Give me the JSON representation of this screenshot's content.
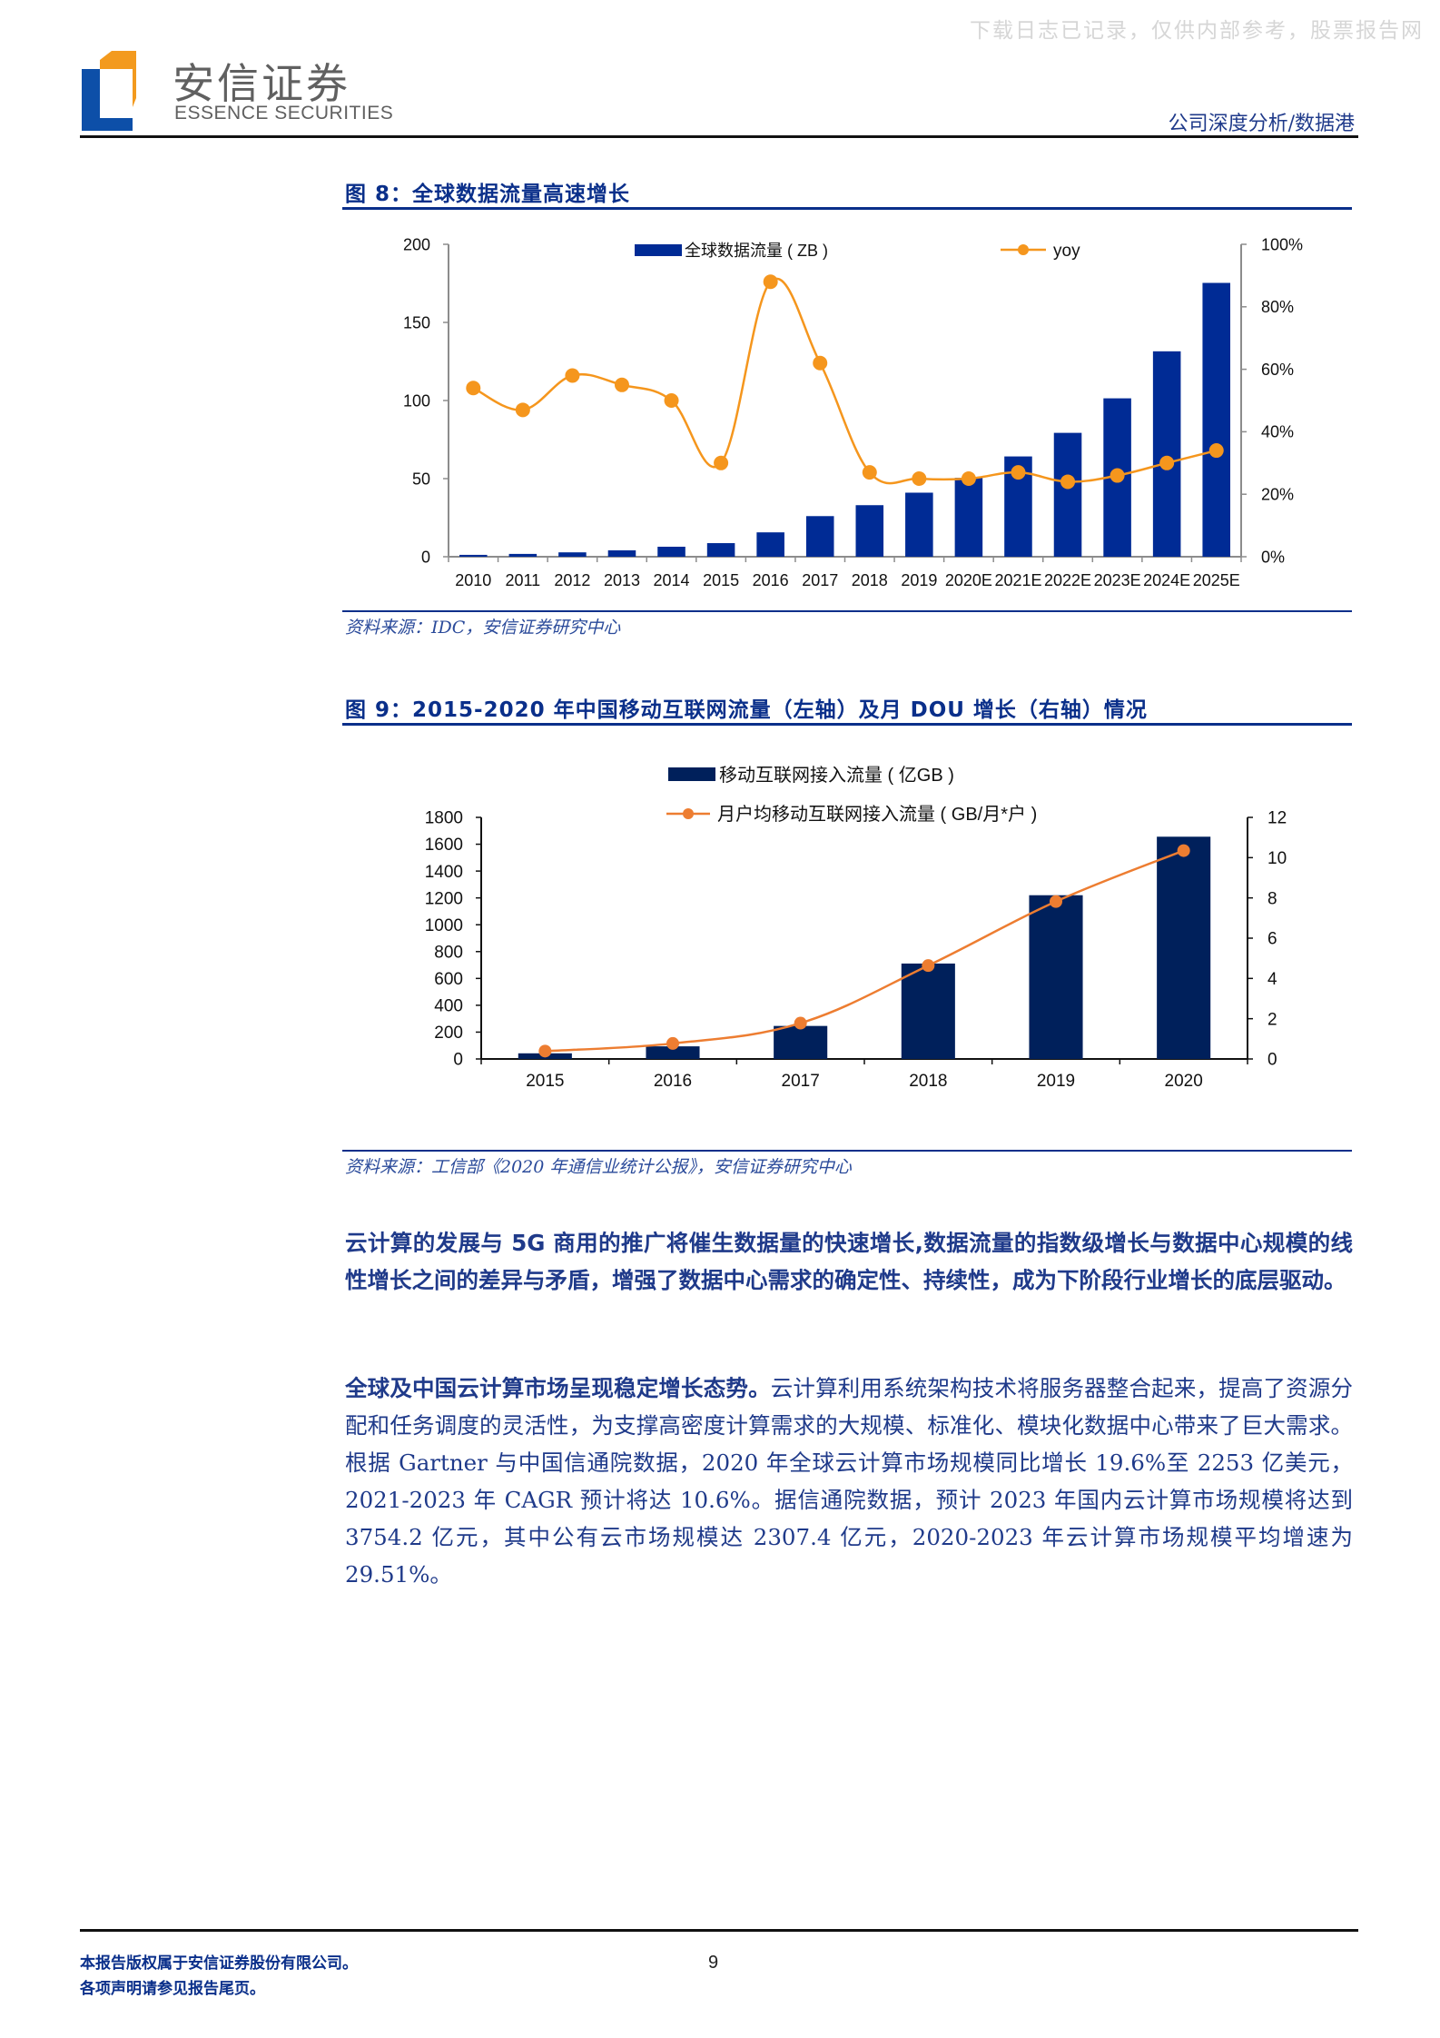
{
  "watermark": "下载日志已记录，仅供内部参考，股票报告网",
  "header": {
    "brand_cn": "安信证券",
    "brand_en": "ESSENCE SECURITIES",
    "category": "公司深度分析/数据港"
  },
  "colors": {
    "brand_blue": "#0a2f8a",
    "logo_blue": "#0d4fa8",
    "logo_orange": "#f39a1e",
    "bar_blue_fig8": "#002b95",
    "bar_navy_fig9": "#00205b",
    "line_orange_fig8": "#f5961d",
    "line_orange_fig9": "#ed7d31"
  },
  "figure8": {
    "title": "图 8：全球数据流量高速增长",
    "source": "资料来源：IDC，安信证券研究中心"
  },
  "figure9": {
    "title": "图 9：2015-2020 年中国移动互联网流量（左轴）及月 DOU 增长（右轴）情况",
    "source": "资料来源：工信部《2020 年通信业统计公报》，安信证券研究中心"
  },
  "chart_data": [
    {
      "type": "bar",
      "title": "全球数据流量高速增长",
      "categories": [
        "2010",
        "2011",
        "2012",
        "2013",
        "2014",
        "2015",
        "2016",
        "2017",
        "2018",
        "2019",
        "2020E",
        "2021E",
        "2022E",
        "2023E",
        "2024E",
        "2025E"
      ],
      "series": [
        {
          "name": "全球数据流量（ZB）",
          "type": "bar",
          "axis": "left",
          "values": [
            1.2,
            1.8,
            2.8,
            4.1,
            6.4,
            8.7,
            15.6,
            26,
            33,
            41,
            50.5,
            64.2,
            79.3,
            101.4,
            131.5,
            175.3
          ]
        },
        {
          "name": "yoy",
          "type": "line",
          "axis": "right",
          "unit": "%",
          "values": [
            54,
            47,
            58,
            55,
            50,
            30,
            88,
            62,
            27,
            25,
            25,
            27,
            24,
            26,
            30,
            34
          ]
        }
      ],
      "ylim": [
        0,
        200
      ],
      "yticks": [
        0,
        50,
        100,
        150,
        200
      ],
      "y2lim": [
        0,
        100
      ],
      "y2ticks": [
        "0%",
        "20%",
        "40%",
        "60%",
        "80%",
        "100%"
      ],
      "xlabel": "",
      "ylabel": "",
      "grid": false,
      "legend_position": "top"
    },
    {
      "type": "bar",
      "title": "2015-2020 年中国移动互联网流量（左轴）及月 DOU 增长（右轴）情况",
      "categories": [
        "2015",
        "2016",
        "2017",
        "2018",
        "2019",
        "2020"
      ],
      "series": [
        {
          "name": "移动互联网接入流量（亿GB）",
          "type": "bar",
          "axis": "left",
          "values": [
            42,
            94,
            246,
            711,
            1220,
            1656
          ]
        },
        {
          "name": "月户均移动互联网接入流量（GB/月*户）",
          "type": "line",
          "axis": "right",
          "values": [
            0.39,
            0.77,
            1.78,
            4.64,
            7.82,
            10.35
          ]
        }
      ],
      "ylim": [
        0,
        1800
      ],
      "yticks": [
        0,
        200,
        400,
        600,
        800,
        1000,
        1200,
        1400,
        1600,
        1800
      ],
      "y2lim": [
        0,
        12
      ],
      "y2ticks": [
        "0",
        "2",
        "4",
        "6",
        "8",
        "10",
        "12"
      ],
      "xlabel": "",
      "ylabel": "",
      "grid": false,
      "legend_position": "top"
    }
  ],
  "body": {
    "p1": "云计算的发展与 5G 商用的推广将催生数据量的快速增长,数据流量的指数级增长与数据中心规模的线性增长之间的差异与矛盾，增强了数据中心需求的确定性、持续性，成为下阶段行业增长的底层驱动。",
    "p2_lead": "全球及中国云计算市场呈现稳定增长态势。",
    "p2_rest": "云计算利用系统架构技术将服务器整合起来，提高了资源分配和任务调度的灵活性，为支撑高密度计算需求的大规模、标准化、模块化数据中心带来了巨大需求。根据 Gartner 与中国信通院数据，2020 年全球云计算市场规模同比增长 19.6%至 2253 亿美元，2021-2023 年 CAGR 预计将达 10.6%。据信通院数据，预计 2023 年国内云计算市场规模将达到 3754.2 亿元，其中公有云市场规模达 2307.4 亿元，2020-2023 年云计算市场规模平均增速为 29.51%。"
  },
  "footer": {
    "line1": "本报告版权属于安信证券股份有限公司。",
    "line2": "各项声明请参见报告尾页。",
    "page_number": "9"
  }
}
